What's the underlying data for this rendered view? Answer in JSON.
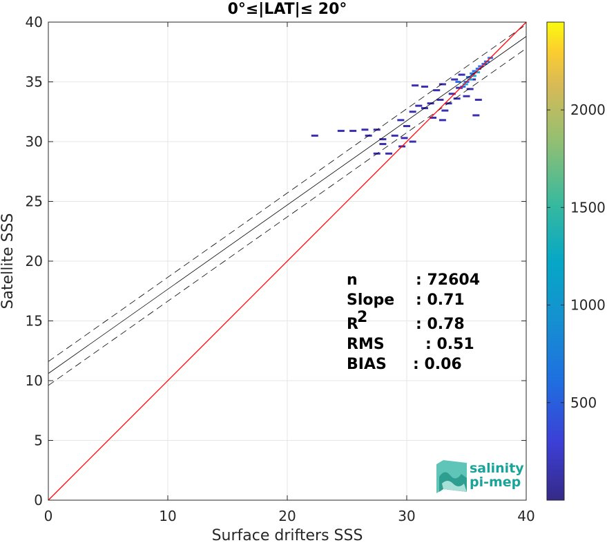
{
  "chart_data": {
    "type": "scatter",
    "title": "0°≤|LAT|≤ 20°",
    "xlabel": "Surface drifters SSS",
    "ylabel": "Satellite SSS",
    "xlim": [
      0,
      40
    ],
    "ylim": [
      0,
      40
    ],
    "xticks": [
      "0",
      "10",
      "20",
      "30",
      "40"
    ],
    "yticks": [
      "0",
      "5",
      "10",
      "15",
      "20",
      "25",
      "30",
      "35",
      "40"
    ],
    "grid": true,
    "one_to_one_line": {
      "x": [
        0,
        40
      ],
      "y": [
        0,
        40
      ],
      "color": "#ff0000"
    },
    "regression_fit": {
      "x": [
        0,
        40
      ],
      "y": [
        10.6,
        38.8
      ],
      "color": "#000000",
      "style": "solid"
    },
    "regression_bounds": [
      {
        "x": [
          0,
          40
        ],
        "y": [
          11.6,
          39.8
        ],
        "style": "dashed"
      },
      {
        "x": [
          0,
          40
        ],
        "y": [
          9.6,
          37.8
        ],
        "style": "dashed"
      }
    ],
    "density_points": [
      {
        "x": 22.3,
        "y": 30.5,
        "level": "low"
      },
      {
        "x": 24.5,
        "y": 30.9,
        "level": "low"
      },
      {
        "x": 25.5,
        "y": 30.9,
        "level": "low"
      },
      {
        "x": 26.5,
        "y": 31.0,
        "level": "low"
      },
      {
        "x": 27.5,
        "y": 31.0,
        "level": "low"
      },
      {
        "x": 26.8,
        "y": 30.5,
        "level": "low"
      },
      {
        "x": 28.0,
        "y": 30.2,
        "level": "low"
      },
      {
        "x": 29.0,
        "y": 30.5,
        "level": "low"
      },
      {
        "x": 29.8,
        "y": 30.3,
        "level": "low"
      },
      {
        "x": 30.0,
        "y": 31.3,
        "level": "low"
      },
      {
        "x": 27.5,
        "y": 29.0,
        "level": "low"
      },
      {
        "x": 28.5,
        "y": 29.0,
        "level": "low"
      },
      {
        "x": 28.0,
        "y": 29.8,
        "level": "low"
      },
      {
        "x": 30.5,
        "y": 30.0,
        "level": "low"
      },
      {
        "x": 29.6,
        "y": 29.6,
        "level": "low"
      },
      {
        "x": 29.5,
        "y": 31.8,
        "level": "low"
      },
      {
        "x": 30.5,
        "y": 32.5,
        "level": "low"
      },
      {
        "x": 31.0,
        "y": 33.0,
        "level": "low"
      },
      {
        "x": 31.5,
        "y": 32.8,
        "level": "low"
      },
      {
        "x": 32.0,
        "y": 33.2,
        "level": "low"
      },
      {
        "x": 31.5,
        "y": 34.6,
        "level": "low"
      },
      {
        "x": 30.7,
        "y": 34.7,
        "level": "low"
      },
      {
        "x": 32.5,
        "y": 34.3,
        "level": "low"
      },
      {
        "x": 32.8,
        "y": 33.5,
        "level": "low"
      },
      {
        "x": 33.0,
        "y": 34.8,
        "level": "low"
      },
      {
        "x": 33.2,
        "y": 32.6,
        "level": "low"
      },
      {
        "x": 33.5,
        "y": 33.2,
        "level": "low"
      },
      {
        "x": 33.8,
        "y": 34.0,
        "level": "low"
      },
      {
        "x": 34.0,
        "y": 35.2,
        "level": "low"
      },
      {
        "x": 34.2,
        "y": 33.6,
        "level": "low"
      },
      {
        "x": 34.4,
        "y": 34.5,
        "level": "low"
      },
      {
        "x": 34.6,
        "y": 35.6,
        "level": "low"
      },
      {
        "x": 35.0,
        "y": 33.8,
        "level": "low"
      },
      {
        "x": 35.3,
        "y": 34.4,
        "level": "low"
      },
      {
        "x": 35.5,
        "y": 35.2,
        "level": "low"
      },
      {
        "x": 35.8,
        "y": 32.2,
        "level": "low"
      },
      {
        "x": 36.0,
        "y": 33.5,
        "level": "low"
      },
      {
        "x": 32.2,
        "y": 32.0,
        "level": "low"
      },
      {
        "x": 33.0,
        "y": 31.8,
        "level": "low"
      },
      {
        "x": 34.3,
        "y": 35.0,
        "level": "mid"
      },
      {
        "x": 34.7,
        "y": 34.6,
        "level": "mid"
      },
      {
        "x": 35.0,
        "y": 35.0,
        "level": "mid"
      },
      {
        "x": 35.2,
        "y": 35.4,
        "level": "mid"
      },
      {
        "x": 35.5,
        "y": 35.7,
        "level": "mid"
      },
      {
        "x": 35.7,
        "y": 35.9,
        "level": "mid"
      },
      {
        "x": 36.0,
        "y": 36.1,
        "level": "mid"
      },
      {
        "x": 36.2,
        "y": 36.3,
        "level": "mid"
      },
      {
        "x": 36.5,
        "y": 36.5,
        "level": "mid"
      },
      {
        "x": 36.7,
        "y": 36.7,
        "level": "mid"
      },
      {
        "x": 37.0,
        "y": 37.0,
        "level": "mid"
      },
      {
        "x": 34.9,
        "y": 34.8,
        "level": "high"
      },
      {
        "x": 35.3,
        "y": 35.2,
        "level": "high"
      },
      {
        "x": 35.6,
        "y": 35.5,
        "level": "high"
      },
      {
        "x": 35.9,
        "y": 35.8,
        "level": "high"
      }
    ],
    "colorbar": {
      "ticks": [
        "500",
        "1000",
        "1500",
        "2000"
      ],
      "tick_values": [
        500,
        1000,
        1500,
        2000
      ],
      "range": [
        0,
        2450
      ],
      "colormap": "parula"
    },
    "stats": [
      {
        "label": "n",
        "sup": "",
        "value": ": 72604"
      },
      {
        "label": "Slope",
        "sup": "",
        "value": ": 0.71"
      },
      {
        "label": "R",
        "sup": "2",
        "value": ": 0.78"
      },
      {
        "label": "RMS",
        "sup": "",
        "value": ": 0.51"
      },
      {
        "label": "BIAS",
        "sup": "",
        "value": ": 0.06"
      }
    ]
  },
  "logo": {
    "line1": "salinity",
    "line2": "pi-mep"
  },
  "colors": {
    "one_to_one": "#ff0000",
    "fit": "#000000",
    "grid": "#e6e6e6",
    "logo": "#1aa39a"
  }
}
